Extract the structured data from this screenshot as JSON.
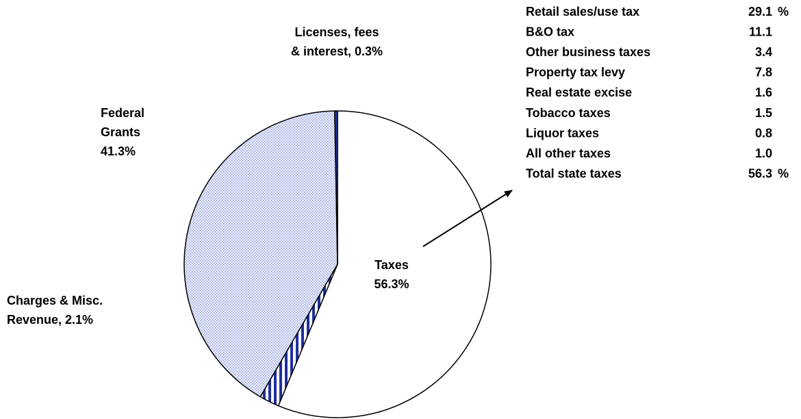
{
  "chart_data": {
    "type": "pie",
    "values": [
      56.3,
      2.1,
      41.3,
      0.3
    ],
    "labels": [
      [
        "Taxes",
        "56.3%"
      ],
      [
        "Charges & Misc.",
        "Revenue, 2.1%"
      ],
      [
        "Federal",
        "Grants",
        "41.3%"
      ],
      [
        "Licenses, fees",
        "& interest, 0.3%"
      ]
    ],
    "colors": [
      "#ffffff",
      "#1f2fa0",
      "#8c9ad8",
      "#1f2fa0"
    ],
    "patterns": [
      "none",
      "stripes",
      "dots",
      "dense-dots"
    ],
    "table": {
      "rows": [
        [
          "Retail sales/use tax",
          "29.1",
          "%"
        ],
        [
          "B&O tax",
          "11.1"
        ],
        [
          "Other business taxes",
          "3.4"
        ],
        [
          "Property tax levy",
          "7.8"
        ],
        [
          "Real estate excise",
          "1.6"
        ],
        [
          "Tobacco taxes",
          "1.5"
        ],
        [
          "Liquor taxes",
          "0.8"
        ],
        [
          "All other taxes",
          "1.0"
        ],
        [
          "Total state taxes",
          "56.3",
          "%"
        ]
      ]
    }
  }
}
